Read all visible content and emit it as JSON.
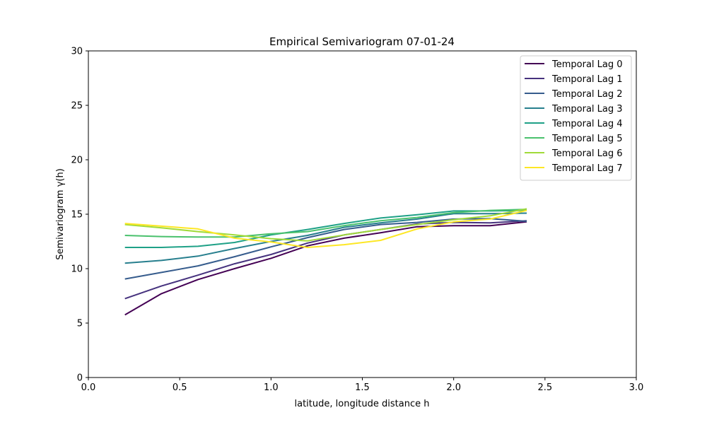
{
  "chart_data": {
    "type": "line",
    "title": "Empirical Semivariogram 07-01-24",
    "xlabel": "latitude, longitude distance h",
    "ylabel": "Semivariogram γ(h)",
    "xlim": [
      0.0,
      3.0
    ],
    "ylim": [
      0,
      30
    ],
    "xticks": [
      "0.0",
      "0.5",
      "1.0",
      "1.5",
      "2.0",
      "2.5",
      "3.0"
    ],
    "yticks": [
      "0",
      "5",
      "10",
      "15",
      "20",
      "25",
      "30"
    ],
    "grid": false,
    "legend_position": "top-right",
    "x": [
      0.2,
      0.4,
      0.6,
      0.8,
      1.0,
      1.2,
      1.4,
      1.6,
      1.8,
      2.0,
      2.2,
      2.4
    ],
    "series": [
      {
        "name": "Temporal Lag 0",
        "color": "#440154",
        "values": [
          5.75,
          7.7,
          9.0,
          10.0,
          10.95,
          12.1,
          12.8,
          13.3,
          13.85,
          13.95,
          13.95,
          14.3
        ]
      },
      {
        "name": "Temporal Lag 1",
        "color": "#46327e",
        "values": [
          7.25,
          8.4,
          9.4,
          10.45,
          11.3,
          12.35,
          13.1,
          13.6,
          14.1,
          14.25,
          14.2,
          14.4
        ]
      },
      {
        "name": "Temporal Lag 2",
        "color": "#365c8d",
        "values": [
          9.05,
          9.65,
          10.25,
          11.1,
          12.0,
          12.85,
          13.6,
          14.05,
          14.25,
          14.55,
          14.6,
          14.35
        ]
      },
      {
        "name": "Temporal Lag 3",
        "color": "#277f8e",
        "values": [
          10.5,
          10.75,
          11.15,
          11.85,
          12.5,
          13.05,
          13.8,
          14.2,
          14.55,
          15.05,
          15.05,
          15.1
        ]
      },
      {
        "name": "Temporal Lag 4",
        "color": "#1fa187",
        "values": [
          11.95,
          11.95,
          12.05,
          12.4,
          13.1,
          13.6,
          14.15,
          14.65,
          14.95,
          15.3,
          15.3,
          15.35
        ]
      },
      {
        "name": "Temporal Lag 5",
        "color": "#4ac16d",
        "values": [
          13.05,
          12.95,
          12.9,
          12.9,
          13.2,
          13.4,
          13.95,
          14.4,
          14.7,
          15.15,
          15.35,
          15.45
        ]
      },
      {
        "name": "Temporal Lag 6",
        "color": "#a0da39",
        "values": [
          14.05,
          13.75,
          13.4,
          13.1,
          12.75,
          12.55,
          13.1,
          13.6,
          14.05,
          14.5,
          14.85,
          15.5
        ]
      },
      {
        "name": "Temporal Lag 7",
        "color": "#fde725",
        "values": [
          14.15,
          13.9,
          13.65,
          12.8,
          12.45,
          11.95,
          12.2,
          12.6,
          13.65,
          14.3,
          14.55,
          15.35
        ]
      }
    ]
  }
}
